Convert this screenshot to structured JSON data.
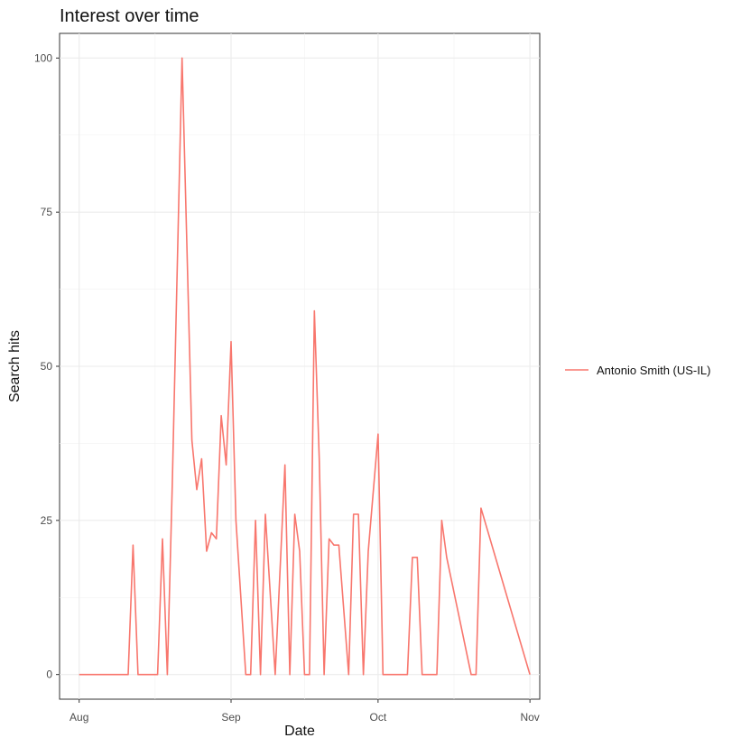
{
  "chart_data": {
    "type": "line",
    "title": "Interest over time",
    "xlabel": "Date",
    "ylabel": "Search hits",
    "x_axis_type": "date",
    "xlim": [
      "2018-07-28",
      "2018-11-03"
    ],
    "ylim": [
      -4,
      104
    ],
    "x_ticks": [
      {
        "date": "2018-08-01",
        "label": "Aug"
      },
      {
        "date": "2018-09-01",
        "label": "Sep"
      },
      {
        "date": "2018-10-01",
        "label": "Oct"
      },
      {
        "date": "2018-11-01",
        "label": "Nov"
      }
    ],
    "y_ticks": [
      0,
      25,
      50,
      75,
      100
    ],
    "grid": true,
    "legend_position": "right",
    "series": [
      {
        "name": "Antonio Smith (US-IL)",
        "color": "#F8766D",
        "x": [
          "2018-08-01",
          "2018-08-11",
          "2018-08-12",
          "2018-08-13",
          "2018-08-17",
          "2018-08-18",
          "2018-08-19",
          "2018-08-20",
          "2018-08-22",
          "2018-08-24",
          "2018-08-25",
          "2018-08-26",
          "2018-08-27",
          "2018-08-28",
          "2018-08-29",
          "2018-08-30",
          "2018-08-31",
          "2018-09-01",
          "2018-09-02",
          "2018-09-04",
          "2018-09-05",
          "2018-09-06",
          "2018-09-07",
          "2018-09-08",
          "2018-09-10",
          "2018-09-12",
          "2018-09-13",
          "2018-09-14",
          "2018-09-15",
          "2018-09-16",
          "2018-09-17",
          "2018-09-18",
          "2018-09-19",
          "2018-09-20",
          "2018-09-21",
          "2018-09-22",
          "2018-09-23",
          "2018-09-25",
          "2018-09-26",
          "2018-09-27",
          "2018-09-28",
          "2018-09-29",
          "2018-10-01",
          "2018-10-02",
          "2018-10-07",
          "2018-10-08",
          "2018-10-09",
          "2018-10-10",
          "2018-10-13",
          "2018-10-14",
          "2018-10-15",
          "2018-10-20",
          "2018-10-21",
          "2018-10-22",
          "2018-11-01"
        ],
        "values": [
          0,
          0,
          21,
          0,
          0,
          22,
          0,
          31,
          100,
          38,
          30,
          35,
          20,
          23,
          22,
          42,
          34,
          54,
          25,
          0,
          0,
          25,
          0,
          26,
          0,
          34,
          0,
          26,
          20,
          0,
          0,
          59,
          35,
          0,
          22,
          21,
          21,
          0,
          26,
          26,
          0,
          20,
          39,
          0,
          0,
          19,
          19,
          0,
          0,
          25,
          19,
          0,
          0,
          27,
          0
        ]
      }
    ]
  }
}
